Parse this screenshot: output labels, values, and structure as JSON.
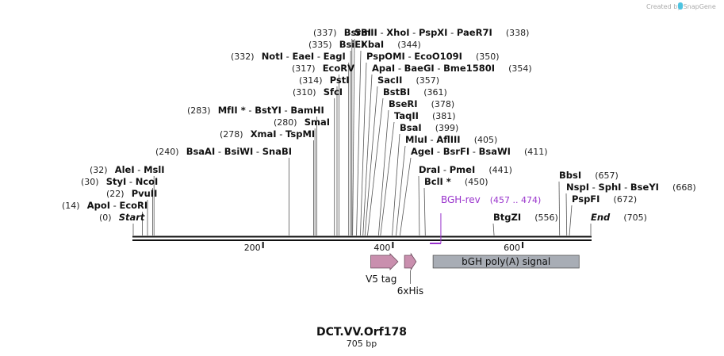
{
  "credit": "Created by SnapGene",
  "map": {
    "title": "DCT.VV.Orf178",
    "length_label": "705 bp",
    "total_bp": 705
  },
  "ticks": [
    {
      "label": "200",
      "bp": 200
    },
    {
      "label": "400",
      "bp": 400
    },
    {
      "label": "600",
      "bp": 600
    }
  ],
  "sites": [
    {
      "pos": "(0)",
      "bp": 0,
      "names": [
        "Start"
      ],
      "italic": true
    },
    {
      "pos": "(14)",
      "bp": 14,
      "names": [
        "ApoI",
        "EcoRI"
      ]
    },
    {
      "pos": "(22)",
      "bp": 22,
      "names": [
        "PvuII"
      ]
    },
    {
      "pos": "(30)",
      "bp": 30,
      "names": [
        "StyI",
        "NcoI"
      ]
    },
    {
      "pos": "(32)",
      "bp": 32,
      "names": [
        "AleI",
        "MslI"
      ]
    },
    {
      "pos": "(240)",
      "bp": 240,
      "names": [
        "BsaAI",
        "BsiWI",
        "SnaBI"
      ]
    },
    {
      "pos": "(278)",
      "bp": 278,
      "names": [
        "XmaI",
        "TspMI"
      ]
    },
    {
      "pos": "(280)",
      "bp": 280,
      "names": [
        "SmaI"
      ]
    },
    {
      "pos": "(283)",
      "bp": 283,
      "names": [
        "MfII *",
        "BstYI",
        "BamHI"
      ]
    },
    {
      "pos": "(310)",
      "bp": 310,
      "names": [
        "SfcI"
      ]
    },
    {
      "pos": "(314)",
      "bp": 314,
      "names": [
        "PstI"
      ]
    },
    {
      "pos": "(317)",
      "bp": 317,
      "names": [
        "EcoRV"
      ]
    },
    {
      "pos": "(332)",
      "bp": 332,
      "names": [
        "NotI",
        "EaeI",
        "EagI"
      ]
    },
    {
      "pos": "(335)",
      "bp": 335,
      "names": [
        "BsiEI"
      ]
    },
    {
      "pos": "(337)",
      "bp": 337,
      "names": [
        "BsrBI"
      ]
    },
    {
      "pos": "(338)",
      "bp": 338,
      "names": [
        "SmII",
        "XhoI",
        "PspXI",
        "PaeR7I"
      ]
    },
    {
      "pos": "(344)",
      "bp": 344,
      "names": [
        "XbaI"
      ]
    },
    {
      "pos": "(350)",
      "bp": 350,
      "names": [
        "PspOMI",
        "EcoO109I"
      ]
    },
    {
      "pos": "(354)",
      "bp": 354,
      "names": [
        "ApaI",
        "BaeGI",
        "Bme1580I"
      ]
    },
    {
      "pos": "(357)",
      "bp": 357,
      "names": [
        "SacII"
      ]
    },
    {
      "pos": "(361)",
      "bp": 361,
      "names": [
        "BstBI"
      ]
    },
    {
      "pos": "(378)",
      "bp": 378,
      "names": [
        "BseRI"
      ]
    },
    {
      "pos": "(381)",
      "bp": 381,
      "names": [
        "TaqII"
      ]
    },
    {
      "pos": "(399)",
      "bp": 399,
      "names": [
        "BsaI"
      ]
    },
    {
      "pos": "(405)",
      "bp": 405,
      "names": [
        "MluI",
        "AflIII"
      ]
    },
    {
      "pos": "(411)",
      "bp": 411,
      "names": [
        "AgeI",
        "BsrFI",
        "BsaWI"
      ]
    },
    {
      "pos": "(441)",
      "bp": 441,
      "names": [
        "DraI",
        "PmeI"
      ]
    },
    {
      "pos": "(450)",
      "bp": 450,
      "names": [
        "BclI *"
      ]
    },
    {
      "pos": "(556)",
      "bp": 556,
      "names": [
        "BtgZI"
      ]
    },
    {
      "pos": "(657)",
      "bp": 657,
      "names": [
        "BbsI"
      ]
    },
    {
      "pos": "(668)",
      "bp": 668,
      "names": [
        "NspI",
        "SphI",
        "BseYI"
      ]
    },
    {
      "pos": "(672)",
      "bp": 672,
      "names": [
        "PspFI"
      ]
    },
    {
      "pos": "(705)",
      "bp": 705,
      "names": [
        "End"
      ],
      "italic": true
    }
  ],
  "primer": {
    "name": "BGH-rev",
    "range": "(457 .. 474)",
    "start": 457,
    "end": 474,
    "color": "#9933cc"
  },
  "features": [
    {
      "name": "V5 tag",
      "start": 366,
      "end": 408,
      "color": "#c98fae",
      "kind": "arrow"
    },
    {
      "name": "6xHis",
      "start": 418,
      "end": 436,
      "color": "#c98fae",
      "kind": "arrow"
    },
    {
      "name": "bGH poly(A) signal",
      "start": 462,
      "end": 687,
      "color": "#a8adb5",
      "kind": "box"
    }
  ]
}
